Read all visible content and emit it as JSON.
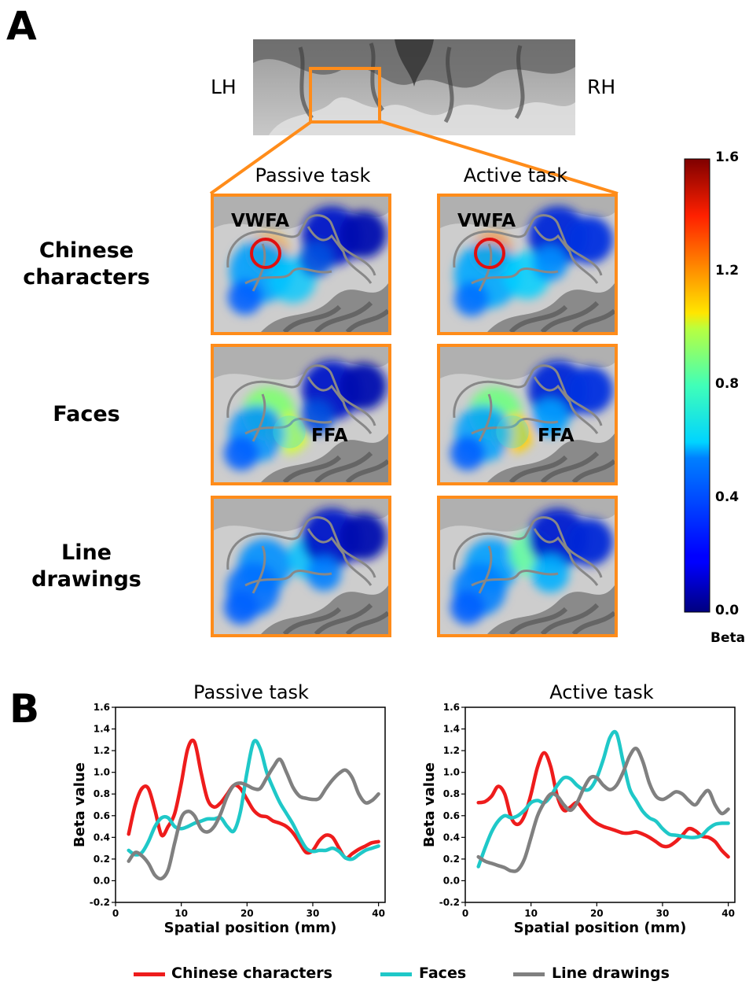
{
  "panel_a": {
    "letter": "A",
    "hemispheres": {
      "left": "LH",
      "right": "RH"
    },
    "columns": [
      "Passive task",
      "Active task"
    ],
    "rows": [
      {
        "label": "Chinese characters",
        "roi": "VWFA"
      },
      {
        "label": "Faces",
        "roi": "FFA"
      },
      {
        "label": "Line drawings",
        "roi": ""
      }
    ],
    "colorbar": {
      "ticks": [
        "1.6",
        "1.2",
        "0.8",
        "0.4",
        "0.0"
      ],
      "label": "Beta",
      "range": [
        0.0,
        1.6
      ]
    }
  },
  "panel_b": {
    "letter": "B"
  },
  "colors": {
    "chinese": "#ee1c1c",
    "faces": "#1fc8c8",
    "line": "#808080",
    "frame": "#ff8c1a"
  },
  "chart_data": [
    {
      "type": "line",
      "title": "Passive task",
      "xlabel": "Spatial position (mm)",
      "ylabel": "Beta value",
      "xlim": [
        0,
        41
      ],
      "ylim": [
        -0.2,
        1.6
      ],
      "xticks": [
        0,
        10,
        20,
        30,
        40
      ],
      "yticks": [
        -0.2,
        0.0,
        0.2,
        0.4,
        0.6,
        0.8,
        1.0,
        1.2,
        1.4,
        1.6
      ],
      "x": [
        2,
        3,
        4,
        5,
        6,
        7,
        8,
        9,
        10,
        11,
        12,
        13,
        14,
        15,
        16,
        17,
        18,
        19,
        20,
        21,
        22,
        23,
        24,
        25,
        26,
        27,
        28,
        29,
        30,
        31,
        32,
        33,
        34,
        35,
        36,
        37,
        38,
        39,
        40
      ],
      "series": [
        {
          "name": "Chinese characters",
          "values": [
            0.43,
            0.7,
            0.85,
            0.85,
            0.65,
            0.42,
            0.5,
            0.62,
            0.9,
            1.22,
            1.28,
            1.0,
            0.75,
            0.68,
            0.72,
            0.8,
            0.88,
            0.85,
            0.75,
            0.65,
            0.6,
            0.59,
            0.55,
            0.53,
            0.5,
            0.44,
            0.35,
            0.26,
            0.28,
            0.37,
            0.42,
            0.4,
            0.3,
            0.21,
            0.25,
            0.29,
            0.32,
            0.35,
            0.36
          ]
        },
        {
          "name": "Faces",
          "values": [
            0.28,
            0.24,
            0.26,
            0.36,
            0.5,
            0.58,
            0.58,
            0.5,
            0.48,
            0.5,
            0.53,
            0.55,
            0.57,
            0.57,
            0.58,
            0.5,
            0.46,
            0.64,
            1.0,
            1.28,
            1.22,
            1.0,
            0.85,
            0.72,
            0.62,
            0.52,
            0.4,
            0.3,
            0.27,
            0.28,
            0.28,
            0.3,
            0.27,
            0.21,
            0.2,
            0.24,
            0.28,
            0.3,
            0.32
          ]
        },
        {
          "name": "Line drawings",
          "values": [
            0.18,
            0.26,
            0.23,
            0.16,
            0.05,
            0.02,
            0.1,
            0.35,
            0.58,
            0.64,
            0.6,
            0.48,
            0.45,
            0.5,
            0.62,
            0.78,
            0.88,
            0.9,
            0.88,
            0.85,
            0.85,
            0.95,
            1.05,
            1.12,
            1.0,
            0.86,
            0.78,
            0.76,
            0.75,
            0.76,
            0.85,
            0.93,
            0.99,
            1.02,
            0.95,
            0.8,
            0.72,
            0.74,
            0.8
          ]
        }
      ]
    },
    {
      "type": "line",
      "title": "Active task",
      "xlabel": "Spatial position (mm)",
      "ylabel": "Beta value",
      "xlim": [
        0,
        41
      ],
      "ylim": [
        -0.2,
        1.6
      ],
      "xticks": [
        0,
        10,
        20,
        30,
        40
      ],
      "yticks": [
        -0.2,
        0.0,
        0.2,
        0.4,
        0.6,
        0.8,
        1.0,
        1.2,
        1.4,
        1.6
      ],
      "x": [
        2,
        3,
        4,
        5,
        6,
        7,
        8,
        9,
        10,
        11,
        12,
        13,
        14,
        15,
        16,
        17,
        18,
        19,
        20,
        21,
        22,
        23,
        24,
        25,
        26,
        27,
        28,
        29,
        30,
        31,
        32,
        33,
        34,
        35,
        36,
        37,
        38,
        39,
        40
      ],
      "series": [
        {
          "name": "Chinese characters",
          "values": [
            0.72,
            0.73,
            0.78,
            0.87,
            0.8,
            0.58,
            0.52,
            0.6,
            0.8,
            1.05,
            1.18,
            1.05,
            0.78,
            0.65,
            0.68,
            0.72,
            0.65,
            0.58,
            0.53,
            0.5,
            0.48,
            0.46,
            0.44,
            0.44,
            0.45,
            0.43,
            0.4,
            0.36,
            0.32,
            0.32,
            0.36,
            0.42,
            0.48,
            0.46,
            0.41,
            0.4,
            0.36,
            0.28,
            0.22
          ]
        },
        {
          "name": "Faces",
          "values": [
            0.13,
            0.3,
            0.45,
            0.55,
            0.6,
            0.58,
            0.6,
            0.65,
            0.72,
            0.74,
            0.72,
            0.78,
            0.88,
            0.95,
            0.94,
            0.88,
            0.84,
            0.85,
            0.95,
            1.12,
            1.32,
            1.36,
            1.1,
            0.85,
            0.74,
            0.64,
            0.58,
            0.55,
            0.48,
            0.43,
            0.42,
            0.41,
            0.4,
            0.4,
            0.42,
            0.48,
            0.52,
            0.53,
            0.53
          ]
        },
        {
          "name": "Line drawings",
          "values": [
            0.22,
            0.18,
            0.16,
            0.14,
            0.12,
            0.09,
            0.1,
            0.2,
            0.4,
            0.6,
            0.72,
            0.8,
            0.78,
            0.7,
            0.65,
            0.72,
            0.85,
            0.95,
            0.95,
            0.88,
            0.84,
            0.88,
            1.0,
            1.15,
            1.22,
            1.1,
            0.9,
            0.78,
            0.75,
            0.78,
            0.82,
            0.8,
            0.74,
            0.7,
            0.78,
            0.83,
            0.7,
            0.62,
            0.66
          ]
        }
      ]
    }
  ]
}
